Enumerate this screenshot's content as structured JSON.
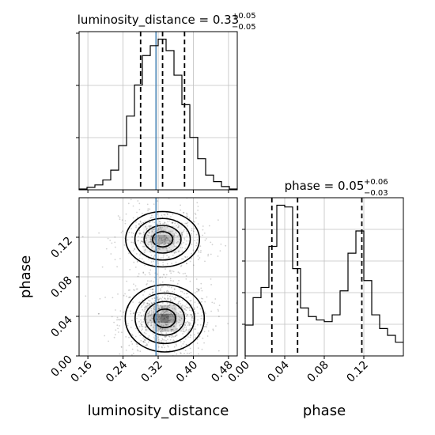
{
  "chart_data": [
    {
      "type": "histogram",
      "panel": "luminosity_distance marginal",
      "title": {
        "param": "luminosity_distance",
        "median": "0.33",
        "plus": "+0.05",
        "minus": "−0.05"
      },
      "xlim": [
        0.14,
        0.5
      ],
      "bin_edges": [
        0.14,
        0.158,
        0.176,
        0.194,
        0.212,
        0.23,
        0.248,
        0.266,
        0.284,
        0.302,
        0.32,
        0.338,
        0.356,
        0.374,
        0.392,
        0.41,
        0.428,
        0.446,
        0.464,
        0.482,
        0.5
      ],
      "counts": [
        0.5,
        1.5,
        3.0,
        6.0,
        12.0,
        27.0,
        45.0,
        64.0,
        82.0,
        88.0,
        92.0,
        85.0,
        70.0,
        52.0,
        32.0,
        19.0,
        9.0,
        5.0,
        2.0,
        0.5
      ],
      "quantile_lines": [
        0.28,
        0.33,
        0.38
      ],
      "truth": 0.315,
      "x_ticks": [
        0.16,
        0.24,
        0.32,
        0.4,
        0.48
      ]
    },
    {
      "type": "histogram",
      "panel": "phase marginal",
      "title": {
        "param": "phase",
        "median": "0.05",
        "plus": "+0.06",
        "minus": "−0.03"
      },
      "xlim": [
        0.0,
        0.16
      ],
      "bin_edges": [
        0.0,
        0.008,
        0.016,
        0.024,
        0.032,
        0.04,
        0.048,
        0.056,
        0.064,
        0.072,
        0.08,
        0.088,
        0.096,
        0.104,
        0.112,
        0.12,
        0.128,
        0.136,
        0.144,
        0.152,
        0.16
      ],
      "counts": [
        18,
        34,
        40,
        64,
        88,
        87,
        51,
        28,
        23,
        21,
        20,
        24,
        38,
        60,
        73,
        44,
        24,
        16,
        12,
        8
      ],
      "quantile_lines": [
        0.027,
        0.053,
        0.118
      ],
      "x_ticks": [
        0.0,
        0.04,
        0.08,
        0.12
      ],
      "xlabel": "phase"
    },
    {
      "type": "scatter",
      "panel": "2D joint luminosity_distance vs phase",
      "xlim": [
        0.14,
        0.5
      ],
      "ylim": [
        0.0,
        0.16
      ],
      "x_ticks": [
        0.16,
        0.24,
        0.32,
        0.4,
        0.48
      ],
      "y_ticks": [
        0.0,
        0.04,
        0.08,
        0.12
      ],
      "xlabel": "luminosity_distance",
      "ylabel": "phase",
      "truth_x": 0.315,
      "modes": [
        {
          "center": [
            0.335,
            0.038
          ],
          "sigma": [
            0.045,
            0.017
          ],
          "weight": 0.6
        },
        {
          "center": [
            0.33,
            0.118
          ],
          "sigma": [
            0.042,
            0.014
          ],
          "weight": 0.4
        }
      ]
    }
  ],
  "colors": {
    "axis": "#000000",
    "grid": "#c0c0c0",
    "hist": "#000000",
    "truth": "#4682b4",
    "points": "#000000"
  }
}
